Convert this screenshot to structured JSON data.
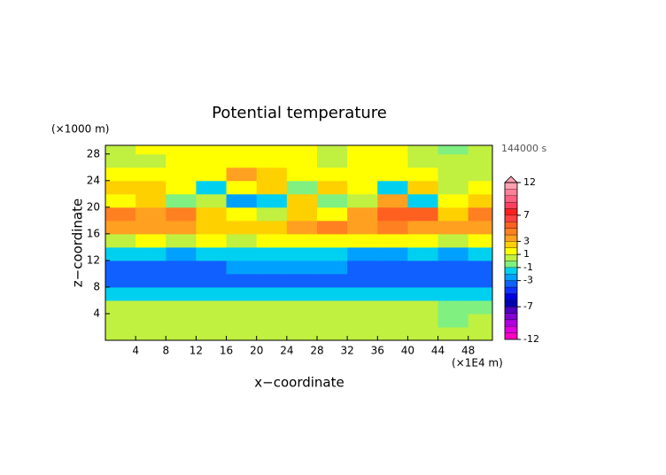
{
  "chart_data": {
    "type": "contour",
    "title": "Potential temperature",
    "xlabel": "x−coordinate",
    "ylabel": "z−coordinate",
    "x_unit": "(×1E4 m)",
    "y_unit": "(×1000 m)",
    "time_label": "144000 s",
    "xlim": [
      0,
      51.2
    ],
    "ylim": [
      0,
      29.3
    ],
    "xticks": [
      4,
      8,
      12,
      16,
      20,
      24,
      28,
      32,
      36,
      40,
      44,
      48
    ],
    "yticks": [
      4,
      8,
      12,
      16,
      20,
      24,
      28
    ],
    "x": [
      2,
      6,
      10,
      14,
      18,
      22,
      26,
      30,
      34,
      38,
      42,
      46,
      50
    ],
    "y": [
      1,
      3,
      5,
      7,
      9,
      11,
      13,
      15,
      17,
      19,
      21,
      23,
      25,
      27,
      29
    ],
    "values": [
      [
        0.5,
        0,
        0.5,
        0,
        0,
        0.5,
        0,
        0.5,
        0,
        0,
        0.5,
        0,
        0
      ],
      [
        0.5,
        0.5,
        0.5,
        0,
        0.5,
        0,
        0.5,
        0,
        0.5,
        0.5,
        0,
        -0.5,
        0
      ],
      [
        0,
        0,
        0.5,
        0.5,
        0,
        0,
        0,
        0,
        0,
        0,
        0,
        -0.5,
        -1
      ],
      [
        -1.5,
        -1.5,
        -2,
        -1.5,
        -1.5,
        -2,
        -1.5,
        -1.5,
        -2,
        -1.5,
        -1.5,
        -2,
        -2
      ],
      [
        -3.5,
        -3.5,
        -3.5,
        -3.5,
        -3.5,
        -3.5,
        -3.5,
        -3.5,
        -3.5,
        -3.5,
        -3.5,
        -3.5,
        -3.5
      ],
      [
        -3.5,
        -3.5,
        -3.5,
        -3.5,
        -3,
        -3,
        -3,
        -3,
        -3.5,
        -3.5,
        -3.5,
        -3.5,
        -3.5
      ],
      [
        -2,
        -2,
        -2.5,
        -2,
        -2,
        -2,
        -2,
        -2,
        -2.5,
        -2.5,
        -2,
        -2.5,
        -2
      ],
      [
        0.5,
        1,
        0.5,
        1.5,
        0.5,
        1,
        1.5,
        1,
        1,
        1.5,
        1,
        0.5,
        1
      ],
      [
        3.5,
        3,
        3.5,
        2.5,
        2,
        2.5,
        3,
        4,
        3,
        4,
        3,
        3,
        3.5
      ],
      [
        4,
        3.5,
        4,
        2.5,
        1,
        0.5,
        2,
        1,
        3,
        5,
        5,
        2,
        4
      ],
      [
        1,
        2,
        -1,
        0,
        -3,
        -2,
        2,
        -1,
        0,
        3,
        -2,
        1,
        2
      ],
      [
        2.5,
        2,
        1.5,
        -1.5,
        1.5,
        2.5,
        -1,
        2,
        1,
        -2,
        2,
        0.5,
        1
      ],
      [
        1,
        1,
        1.5,
        1.5,
        3.5,
        2.5,
        1.5,
        1,
        1.5,
        1,
        1,
        0.5,
        0.5
      ],
      [
        0,
        0.5,
        1,
        1.5,
        1.5,
        1.5,
        1,
        0,
        1,
        1.5,
        0.5,
        0,
        0
      ],
      [
        0,
        1,
        1.5,
        1.5,
        1.5,
        1.5,
        1,
        0,
        1,
        1,
        0,
        -0.5,
        0
      ]
    ],
    "colorbar": {
      "clim": [
        -12,
        12
      ],
      "ticks": [
        -12,
        -7,
        -3,
        -1,
        {
          "value": 1,
          "label": "1"
        },
        3,
        7,
        12
      ],
      "colors": [
        "#ff00c0",
        "#e000e0",
        "#b000e0",
        "#8000d0",
        "#5000c0",
        "#0000b0",
        "#0000e0",
        "#1030ff",
        "#1060ff",
        "#00a0ff",
        "#00d0f0",
        "#80f080",
        "#c0f040",
        "#ffff00",
        "#ffd000",
        "#ffa020",
        "#ff8020",
        "#ff6020",
        "#ff4040",
        "#ff2020",
        "#ff4060",
        "#ff6080",
        "#ff8098",
        "#ffa0b0"
      ]
    }
  }
}
